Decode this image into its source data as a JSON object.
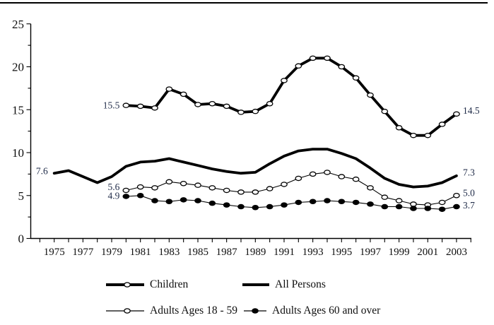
{
  "page": {
    "background": "#ffffff"
  },
  "chart_data": {
    "type": "line",
    "title": "",
    "xlabel": "",
    "ylabel": "",
    "grid": false,
    "legend_position": "bottom",
    "x_axis": {
      "range": [
        1974,
        2004
      ],
      "tick_interval": 1,
      "tick_labels": [
        "1975",
        "1977",
        "1979",
        "1981",
        "1983",
        "1985",
        "1987",
        "1989",
        "1991",
        "1993",
        "1995",
        "1997",
        "1999",
        "2001",
        "2003"
      ]
    },
    "y_axis": {
      "range": [
        0,
        25
      ],
      "major_tick": 5,
      "minor_tick": 2.5,
      "tick_labels": [
        "0",
        "5",
        "10",
        "15",
        "20",
        "25"
      ]
    },
    "series": [
      {
        "name": "Children",
        "start_year": 1980,
        "line": "thick",
        "marker": "open",
        "values": [
          15.5,
          15.4,
          15.2,
          17.4,
          16.8,
          15.6,
          15.7,
          15.4,
          14.7,
          14.8,
          15.7,
          18.4,
          20.1,
          21.0,
          21.0,
          20.0,
          18.7,
          16.7,
          14.8,
          12.9,
          12.0,
          12.0,
          13.3,
          14.5
        ]
      },
      {
        "name": "All Persons",
        "start_year": 1975,
        "line": "thick",
        "marker": "none",
        "values": [
          7.6,
          7.9,
          7.2,
          6.5,
          7.2,
          8.4,
          8.9,
          9.0,
          9.3,
          8.9,
          8.5,
          8.1,
          7.8,
          7.6,
          7.7,
          8.7,
          9.6,
          10.2,
          10.4,
          10.4,
          9.9,
          9.3,
          8.2,
          7.0,
          6.3,
          6.0,
          6.1,
          6.5,
          7.3
        ]
      },
      {
        "name": "Adults Ages 18 - 59",
        "start_year": 1980,
        "line": "thin",
        "marker": "open",
        "values": [
          5.6,
          6.0,
          5.9,
          6.6,
          6.4,
          6.2,
          5.9,
          5.6,
          5.4,
          5.4,
          5.8,
          6.3,
          7.0,
          7.5,
          7.7,
          7.2,
          6.9,
          5.9,
          4.8,
          4.4,
          4.0,
          3.9,
          4.2,
          5.0
        ]
      },
      {
        "name": "Adults Ages 60 and over",
        "start_year": 1980,
        "line": "thin",
        "marker": "filled",
        "values": [
          4.9,
          5.0,
          4.4,
          4.3,
          4.5,
          4.4,
          4.1,
          3.9,
          3.7,
          3.6,
          3.7,
          3.9,
          4.2,
          4.3,
          4.4,
          4.3,
          4.2,
          4.0,
          3.7,
          3.7,
          3.5,
          3.5,
          3.4,
          3.7
        ]
      }
    ],
    "annotations": [
      {
        "text": "15.5",
        "year": 1980,
        "value": 15.5,
        "side": "left",
        "dy": 0
      },
      {
        "text": "7.6",
        "year": 1975,
        "value": 7.6,
        "side": "left",
        "dy": -3
      },
      {
        "text": "5.6",
        "year": 1980,
        "value": 5.6,
        "side": "left",
        "dy": -5
      },
      {
        "text": "4.9",
        "year": 1980,
        "value": 4.9,
        "side": "left",
        "dy": -1
      },
      {
        "text": "14.5",
        "year": 2003,
        "value": 14.5,
        "side": "right",
        "dy": -5
      },
      {
        "text": "7.3",
        "year": 2003,
        "value": 7.3,
        "side": "right",
        "dy": -5
      },
      {
        "text": "5.0",
        "year": 2003,
        "value": 5.0,
        "side": "right",
        "dy": -4
      },
      {
        "text": "3.7",
        "year": 2003,
        "value": 3.7,
        "side": "right",
        "dy": -2
      }
    ],
    "colors": {
      "line": "#000000",
      "annotation_text": "#1e2a47",
      "axis_text": "#0f0f0f"
    }
  }
}
